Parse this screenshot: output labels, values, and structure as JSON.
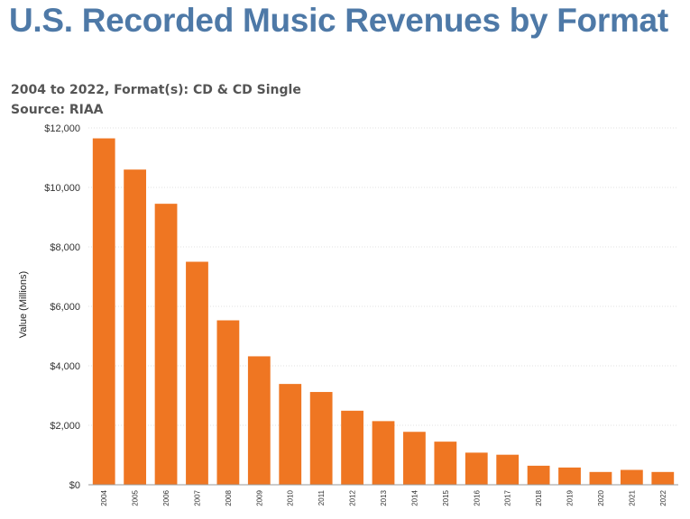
{
  "title": "U.S. Recorded Music Revenues by Format",
  "subtitle_line1": "2004 to 2022, Format(s): CD & CD Single",
  "subtitle_line2": "Source: RIAA",
  "colors": {
    "bar": "#ef7622",
    "title": "#4e79a7",
    "grid": "#e2e2e2"
  },
  "chart_data": {
    "type": "bar",
    "title": "U.S. Recorded Music Revenues by Format",
    "subtitle": "2004 to 2022, Format(s): CD & CD Single",
    "source": "Source: RIAA",
    "xlabel": "",
    "ylabel": "Value (Millions)",
    "ylim": [
      0,
      12000
    ],
    "yticks": [
      0,
      2000,
      4000,
      6000,
      8000,
      10000,
      12000
    ],
    "ytick_labels": [
      "$0",
      "$2,000",
      "$4,000",
      "$6,000",
      "$8,000",
      "$10,000",
      "$12,000"
    ],
    "grid": "horizontal dotted",
    "categories": [
      "2004",
      "2005",
      "2006",
      "2007",
      "2008",
      "2009",
      "2010",
      "2011",
      "2012",
      "2013",
      "2014",
      "2015",
      "2016",
      "2017",
      "2018",
      "2019",
      "2020",
      "2021",
      "2022"
    ],
    "values": [
      11650,
      10600,
      9450,
      7500,
      5530,
      4320,
      3390,
      3120,
      2490,
      2140,
      1780,
      1450,
      1080,
      1010,
      640,
      580,
      430,
      500,
      430
    ]
  }
}
